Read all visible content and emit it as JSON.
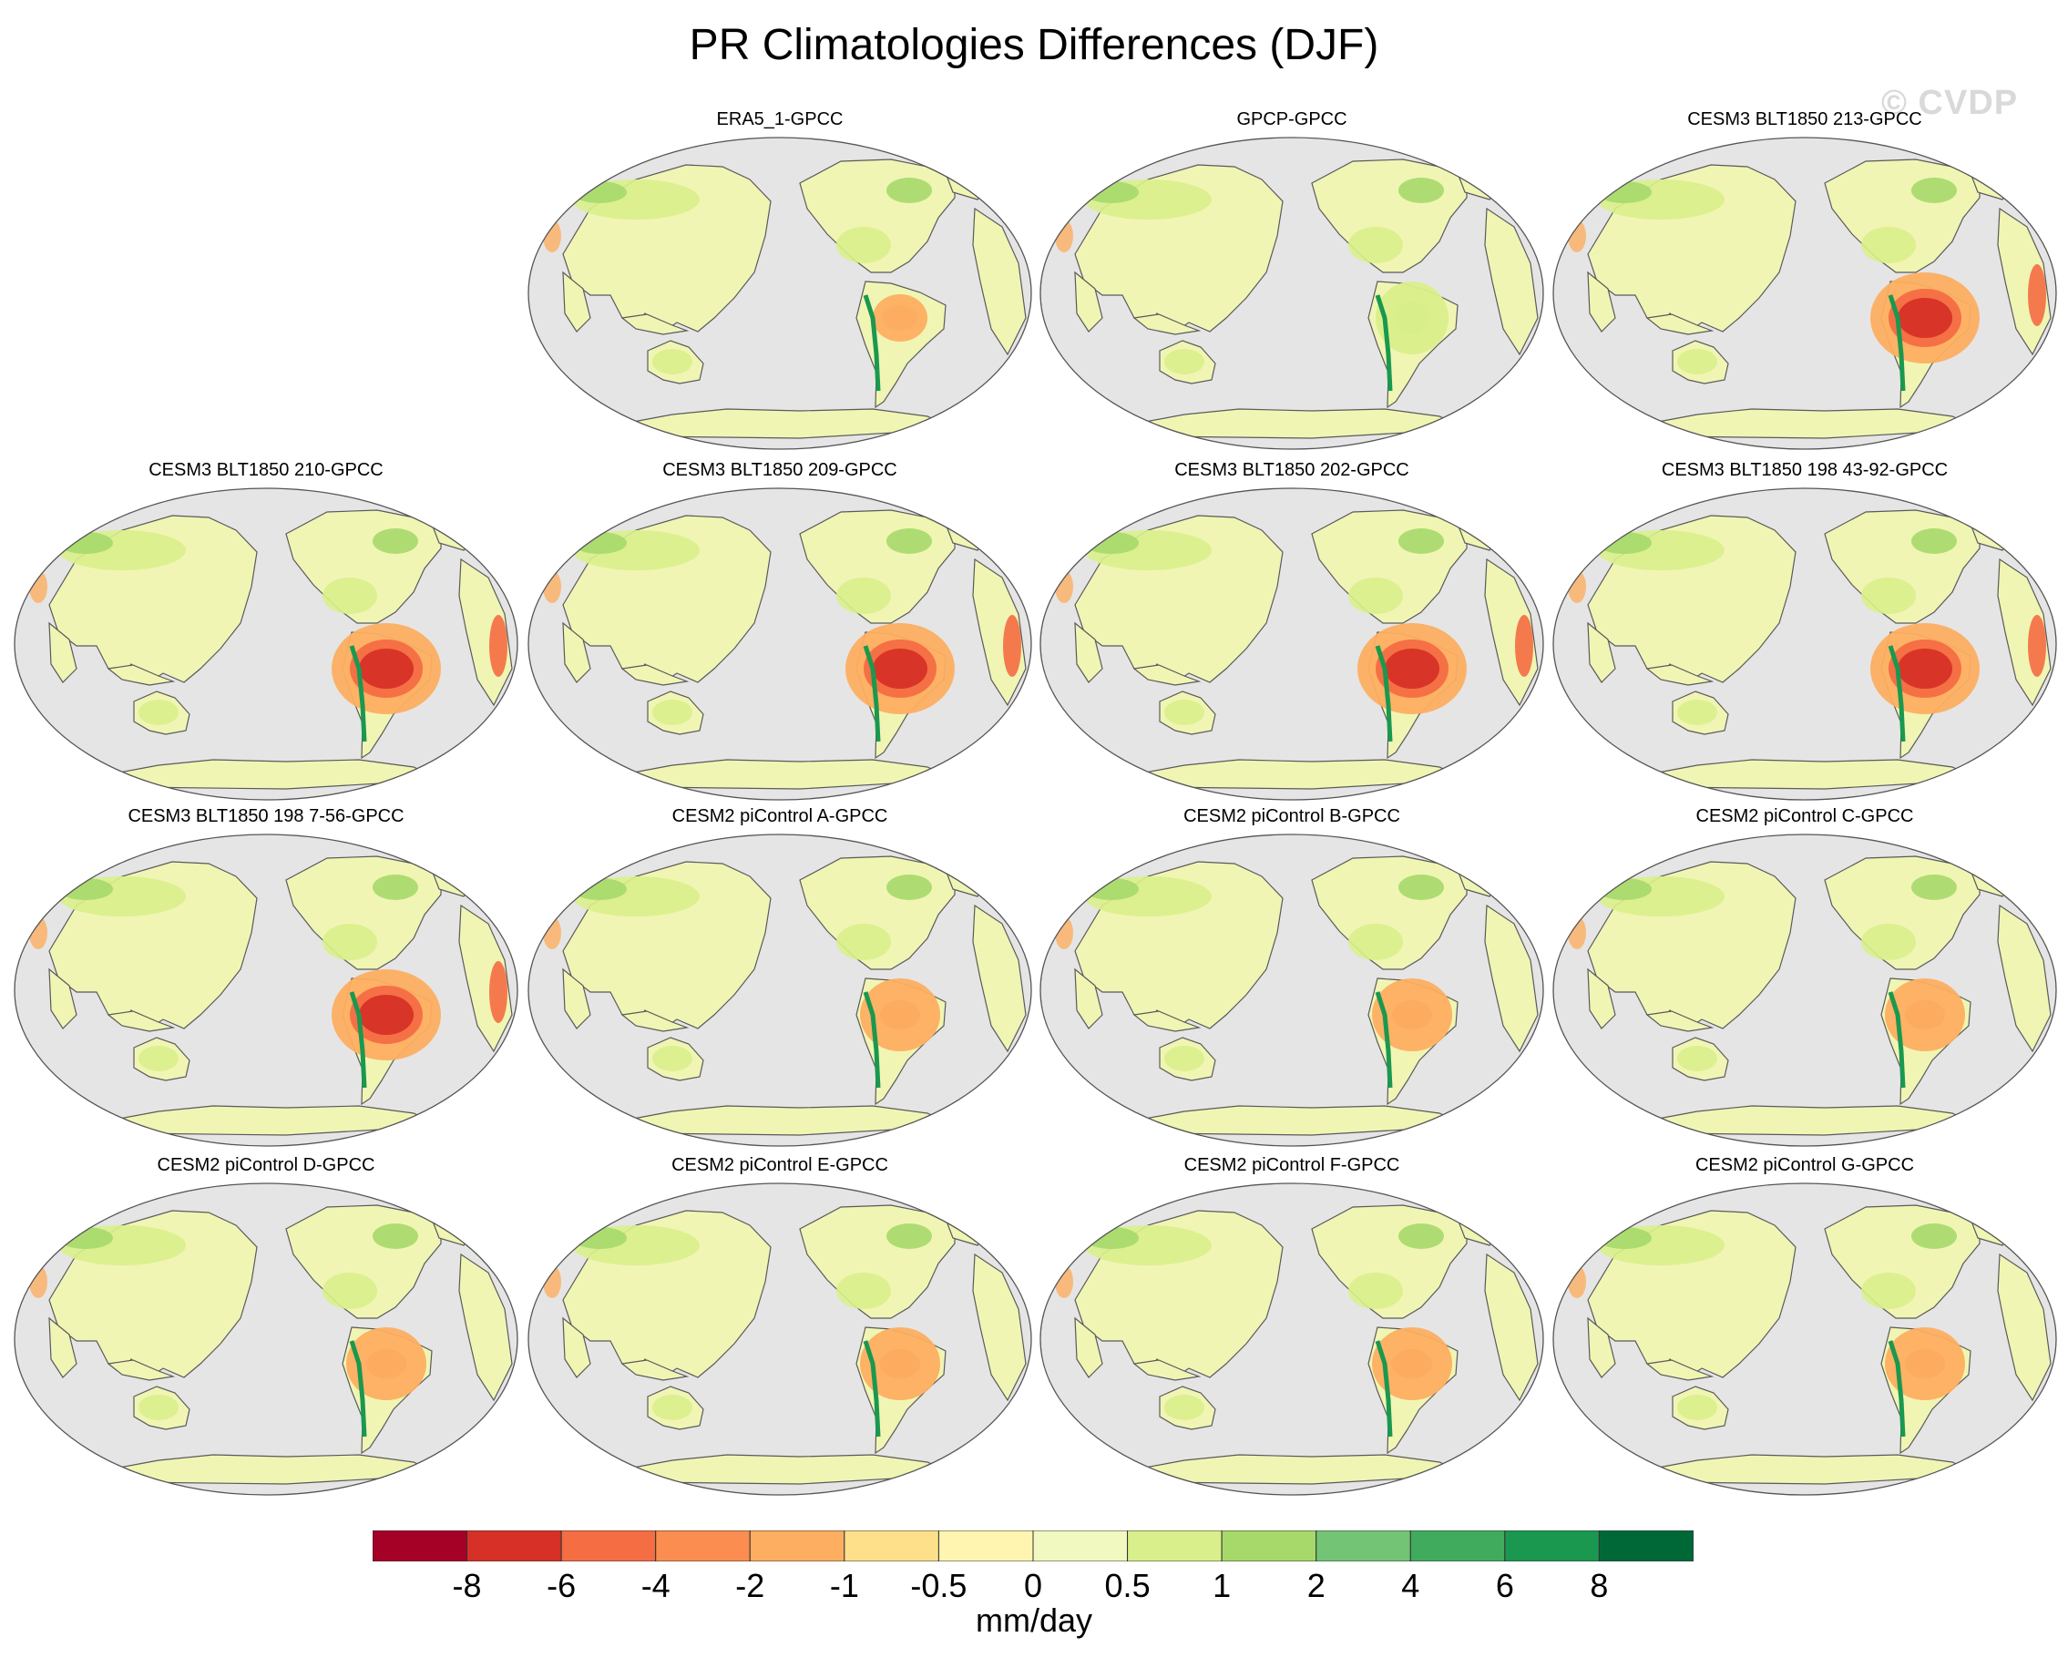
{
  "figure": {
    "title": "PR Climatologies Differences (DJF)",
    "watermark": "© CVDP"
  },
  "colors": {
    "ocean": "#e5e5e5",
    "coast": "#5a5a5a",
    "land_base": "#f0f5b4"
  },
  "panels": [
    {
      "title": "ERA5_1-GPCC",
      "amazon": "mixed_orange",
      "africa": "pale"
    },
    {
      "title": "GPCP-GPCC",
      "amazon": "pale_green",
      "africa": "pale"
    },
    {
      "title": "CESM3 BLT1850 213-GPCC",
      "amazon": "red",
      "africa": "orange"
    },
    {
      "title": "CESM3 BLT1850 210-GPCC",
      "amazon": "red",
      "africa": "orange"
    },
    {
      "title": "CESM3 BLT1850 209-GPCC",
      "amazon": "red",
      "africa": "orange"
    },
    {
      "title": "CESM3 BLT1850 202-GPCC",
      "amazon": "red",
      "africa": "orange"
    },
    {
      "title": "CESM3 BLT1850 198 43-92-GPCC",
      "amazon": "red",
      "africa": "orange"
    },
    {
      "title": "CESM3 BLT1850 198 7-56-GPCC",
      "amazon": "red",
      "africa": "orange"
    },
    {
      "title": "CESM2 piControl A-GPCC",
      "amazon": "red_green",
      "africa": "pale"
    },
    {
      "title": "CESM2 piControl B-GPCC",
      "amazon": "red_green",
      "africa": "pale"
    },
    {
      "title": "CESM2 piControl C-GPCC",
      "amazon": "red_green",
      "africa": "pale"
    },
    {
      "title": "CESM2 piControl D-GPCC",
      "amazon": "red_green",
      "africa": "pale"
    },
    {
      "title": "CESM2 piControl E-GPCC",
      "amazon": "red_green",
      "africa": "pale"
    },
    {
      "title": "CESM2 piControl F-GPCC",
      "amazon": "red_green",
      "africa": "pale"
    },
    {
      "title": "CESM2 piControl G-GPCC",
      "amazon": "red_green",
      "africa": "pale"
    }
  ],
  "colorbar": {
    "units": "mm/day",
    "colors": [
      "#a50026",
      "#d73027",
      "#f46d43",
      "#fa8d4f",
      "#fdae61",
      "#fee08b",
      "#fff5b0",
      "#f1f8c0",
      "#d9ef8b",
      "#a6d96a",
      "#74c476",
      "#41ab5d",
      "#1a9850",
      "#006837"
    ],
    "labels": [
      "-8",
      "-6",
      "-4",
      "-2",
      "-1",
      "-0.5",
      "0",
      "0.5",
      "1",
      "2",
      "4",
      "6",
      "8"
    ]
  }
}
